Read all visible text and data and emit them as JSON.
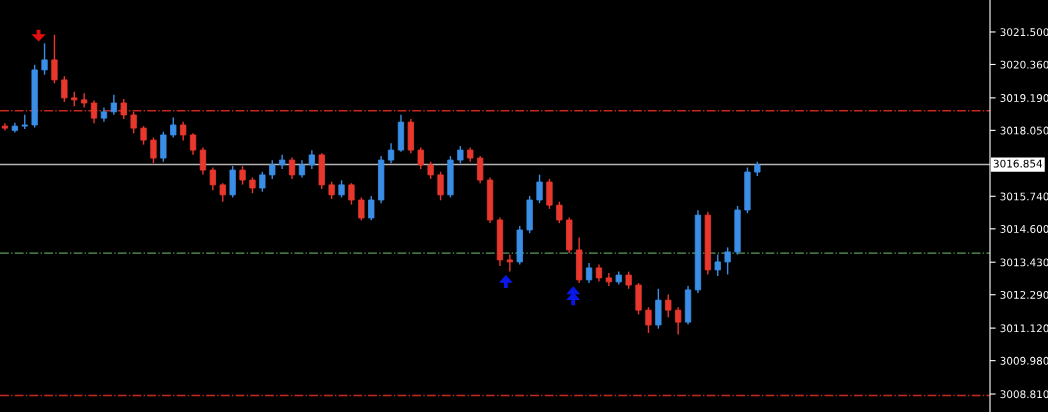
{
  "chart_data": {
    "type": "candlestick",
    "tick_labels": "y",
    "grid": false,
    "categories": [
      null,
      null,
      null,
      null,
      null,
      null,
      null,
      null,
      null,
      null,
      null,
      null,
      null,
      null,
      null,
      null,
      null,
      null,
      null,
      null,
      null,
      null,
      null,
      null,
      null,
      null,
      null,
      null,
      null,
      null,
      null,
      null,
      null,
      null,
      null,
      null,
      null,
      null,
      null,
      null,
      null,
      null,
      null,
      null,
      null,
      null,
      null,
      null,
      null,
      null,
      null,
      null,
      null,
      null,
      null,
      null,
      null,
      null,
      null,
      null,
      null,
      null,
      null,
      null,
      null,
      null,
      null,
      null,
      null,
      null,
      null,
      null,
      null,
      null,
      null,
      null,
      null,
      null,
      null,
      null,
      null,
      null,
      null,
      null,
      null,
      null,
      null,
      null,
      null,
      null,
      null,
      null,
      null,
      null,
      null,
      null,
      null,
      null,
      null,
      null
    ],
    "colors": [
      "#e8382e",
      "#3a8ee6",
      "#3a8ee6",
      "#3a8ee6",
      "#3a8ee6",
      "#e8382e",
      "#e8382e",
      "#e8382e",
      "#e8382e",
      "#e8382e",
      "#3a8ee6",
      "#3a8ee6",
      "#e8382e",
      "#e8382e",
      "#e8382e",
      "#e8382e",
      "#3a8ee6",
      "#3a8ee6",
      "#e8382e",
      "#e8382e",
      "#e8382e",
      "#e8382e",
      "#e8382e",
      "#3a8ee6",
      "#e8382e",
      "#e8382e",
      "#3a8ee6",
      "#3a8ee6",
      "#3a8ee6",
      "#e8382e",
      "#3a8ee6",
      "#3a8ee6",
      "#e8382e",
      "#e8382e",
      "#3a8ee6",
      "#e8382e",
      "#e8382e",
      "#3a8ee6",
      "#3a8ee6",
      "#3a8ee6",
      "#3a8ee6",
      "#e8382e",
      "#e8382e",
      "#e8382e",
      "#e8382e",
      "#3a8ee6",
      "#3a8ee6",
      "#e8382e",
      "#e8382e",
      "#e8382e",
      "#e8382e",
      "#e8382e",
      "#3a8ee6",
      "#3a8ee6",
      "#3a8ee6",
      "#e8382e",
      "#e8382e",
      "#e8382e",
      "#e8382e",
      "#3a8ee6",
      "#e8382e",
      "#e8382e",
      "#3a8ee6",
      "#e8382e",
      "#e8382e",
      "#e8382e",
      "#3a8ee6",
      "#e8382e",
      "#e8382e",
      "#3a8ee6",
      "#3a8ee6",
      "#e8382e",
      "#3a8ee6",
      "#3a8ee6",
      "#3a8ee6",
      "#3a8ee6",
      "#3a8ee6",
      null,
      null,
      null,
      null,
      null,
      null,
      null,
      null,
      null,
      null,
      null,
      null,
      null,
      null,
      null,
      null,
      null,
      null,
      null,
      null,
      null,
      null,
      null
    ],
    "ohlc": [
      [
        3018.2,
        3018.3,
        3018.05,
        3018.13
      ],
      [
        3018.05,
        3018.32,
        3017.98,
        3018.2
      ],
      [
        3018.2,
        3018.6,
        3018.1,
        3018.24
      ],
      [
        3018.24,
        3020.35,
        3018.15,
        3020.17
      ],
      [
        3020.17,
        3021.1,
        3020.0,
        3020.52
      ],
      [
        3020.52,
        3021.4,
        3019.7,
        3019.82
      ],
      [
        3019.82,
        3019.95,
        3019.05,
        3019.19
      ],
      [
        3019.19,
        3019.4,
        3018.9,
        3019.12
      ],
      [
        3019.12,
        3019.35,
        3018.85,
        3019.01
      ],
      [
        3019.01,
        3019.1,
        3018.3,
        3018.48
      ],
      [
        3018.48,
        3018.85,
        3018.35,
        3018.7
      ],
      [
        3018.7,
        3019.3,
        3018.6,
        3019.01
      ],
      [
        3019.01,
        3019.15,
        3018.45,
        3018.59
      ],
      [
        3018.59,
        3018.7,
        3017.95,
        3018.13
      ],
      [
        3018.13,
        3018.2,
        3017.55,
        3017.71
      ],
      [
        3017.71,
        3017.8,
        3016.9,
        3017.08
      ],
      [
        3017.08,
        3018.0,
        3016.95,
        3017.89
      ],
      [
        3017.89,
        3018.5,
        3017.8,
        3018.24
      ],
      [
        3018.24,
        3018.35,
        3017.7,
        3017.89
      ],
      [
        3017.89,
        3017.95,
        3017.2,
        3017.36
      ],
      [
        3017.36,
        3017.45,
        3016.5,
        3016.66
      ],
      [
        3016.66,
        3016.75,
        3015.95,
        3016.14
      ],
      [
        3016.14,
        3016.2,
        3015.55,
        3015.79
      ],
      [
        3015.79,
        3016.8,
        3015.7,
        3016.66
      ],
      [
        3016.66,
        3016.8,
        3016.15,
        3016.31
      ],
      [
        3016.31,
        3016.4,
        3015.85,
        3016.03
      ],
      [
        3016.03,
        3016.6,
        3015.9,
        3016.49
      ],
      [
        3016.49,
        3017.0,
        3016.35,
        3016.84
      ],
      [
        3016.84,
        3017.2,
        3016.7,
        3017.01
      ],
      [
        3017.01,
        3017.1,
        3016.35,
        3016.49
      ],
      [
        3016.49,
        3017.0,
        3016.4,
        3016.84
      ],
      [
        3016.84,
        3017.35,
        3016.7,
        3017.19
      ],
      [
        3017.19,
        3017.25,
        3016.0,
        3016.14
      ],
      [
        3016.14,
        3016.25,
        3015.65,
        3015.79
      ],
      [
        3015.79,
        3016.3,
        3015.7,
        3016.14
      ],
      [
        3016.14,
        3016.2,
        3015.45,
        3015.61
      ],
      [
        3015.61,
        3015.7,
        3014.9,
        3014.98
      ],
      [
        3014.98,
        3015.75,
        3014.9,
        3015.61
      ],
      [
        3015.61,
        3017.15,
        3015.5,
        3017.01
      ],
      [
        3017.01,
        3017.6,
        3016.9,
        3017.36
      ],
      [
        3017.36,
        3018.6,
        3017.3,
        3018.34
      ],
      [
        3018.34,
        3018.45,
        3017.25,
        3017.36
      ],
      [
        3017.36,
        3017.45,
        3016.7,
        3016.84
      ],
      [
        3016.84,
        3016.95,
        3016.35,
        3016.49
      ],
      [
        3016.49,
        3016.6,
        3015.6,
        3015.79
      ],
      [
        3015.79,
        3017.15,
        3015.7,
        3017.01
      ],
      [
        3017.01,
        3017.5,
        3016.9,
        3017.36
      ],
      [
        3017.36,
        3017.45,
        3016.95,
        3017.08
      ],
      [
        3017.08,
        3017.15,
        3016.2,
        3016.31
      ],
      [
        3016.31,
        3016.4,
        3014.8,
        3014.91
      ],
      [
        3014.91,
        3015.0,
        3013.3,
        3013.51
      ],
      [
        3013.51,
        3013.7,
        3013.1,
        3013.44
      ],
      [
        3013.44,
        3014.7,
        3013.35,
        3014.56
      ],
      [
        3014.56,
        3015.75,
        3014.45,
        3015.61
      ],
      [
        3015.61,
        3016.5,
        3015.5,
        3016.24
      ],
      [
        3016.24,
        3016.35,
        3015.3,
        3015.43
      ],
      [
        3015.43,
        3015.55,
        3014.8,
        3014.91
      ],
      [
        3014.91,
        3015.0,
        3013.75,
        3013.86
      ],
      [
        3013.86,
        3014.3,
        3012.7,
        3012.81
      ],
      [
        3012.81,
        3013.4,
        3012.7,
        3013.23
      ],
      [
        3013.23,
        3013.35,
        3012.75,
        3012.88
      ],
      [
        3012.88,
        3013.05,
        3012.6,
        3012.74
      ],
      [
        3012.74,
        3013.1,
        3012.65,
        3012.98
      ],
      [
        3012.98,
        3013.1,
        3012.5,
        3012.63
      ],
      [
        3012.63,
        3012.7,
        3011.6,
        3011.75
      ],
      [
        3011.75,
        3011.85,
        3010.95,
        3011.23
      ],
      [
        3011.23,
        3012.5,
        3011.1,
        3012.1
      ],
      [
        3012.1,
        3012.3,
        3011.5,
        3011.75
      ],
      [
        3011.75,
        3011.85,
        3010.9,
        3011.33
      ],
      [
        3011.33,
        3012.6,
        3011.25,
        3012.46
      ],
      [
        3012.46,
        3015.25,
        3012.35,
        3015.08
      ],
      [
        3015.08,
        3015.2,
        3013.0,
        3013.16
      ],
      [
        3013.16,
        3013.7,
        3012.95,
        3013.44
      ],
      [
        3013.44,
        3013.95,
        3013.0,
        3013.79
      ],
      [
        3013.79,
        3015.4,
        3013.7,
        3015.26
      ],
      [
        3015.26,
        3016.75,
        3015.15,
        3016.59
      ],
      [
        3016.59,
        3016.95,
        3016.45,
        3016.84
      ],
      null,
      null,
      null,
      null,
      null,
      null,
      null,
      null,
      null,
      null,
      null,
      null,
      null,
      null,
      null,
      null,
      null,
      null,
      null,
      null,
      null,
      null,
      null
    ],
    "ylim": [
      3008.18,
      3022.62
    ],
    "yticks": [
      {
        "value": 3021.5,
        "label": "3021.500"
      },
      {
        "value": 3020.36,
        "label": "3020.360"
      },
      {
        "value": 3019.19,
        "label": "3019.190"
      },
      {
        "value": 3018.05,
        "label": "3018.050"
      },
      {
        "value": 3015.74,
        "label": "3015.740"
      },
      {
        "value": 3014.6,
        "label": "3014.600"
      },
      {
        "value": 3013.43,
        "label": "3013.430"
      },
      {
        "value": 3012.29,
        "label": "3012.290"
      },
      {
        "value": 3011.12,
        "label": "3011.120"
      },
      {
        "value": 3009.98,
        "label": "3009.980"
      },
      {
        "value": 3008.81,
        "label": "3008.810"
      }
    ],
    "ref_lines": [
      {
        "axis": "y",
        "value": 3018.74,
        "color": "#c8281e",
        "line_style": "dashdot"
      },
      {
        "axis": "y",
        "value": 3013.75,
        "color": "#5a9a5a",
        "line_style": "dashdot"
      },
      {
        "axis": "y",
        "value": 3008.76,
        "color": "#c8281e",
        "line_style": "dashdot"
      },
      {
        "axis": "y",
        "value": 3016.854,
        "label": "3016.854",
        "color": "#b4b4b4",
        "line_style": "solid"
      }
    ]
  }
}
